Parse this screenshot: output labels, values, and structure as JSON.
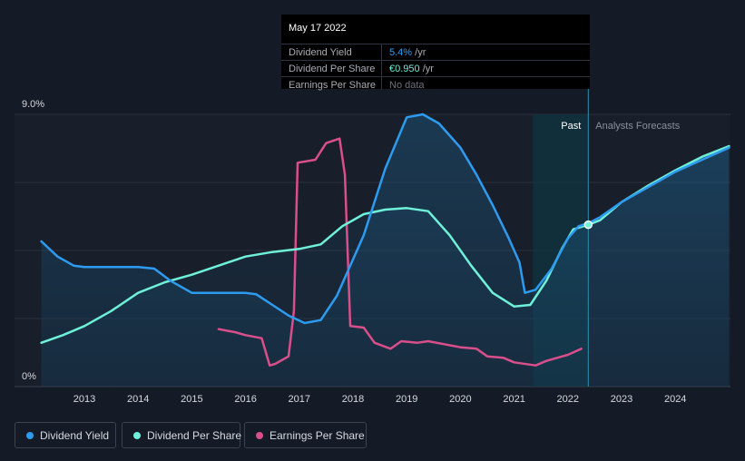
{
  "tooltip": {
    "date": "May 17 2022",
    "rows": [
      {
        "label": "Dividend Yield",
        "value": "5.4%",
        "unit": " /yr",
        "color": "#2d9cf0"
      },
      {
        "label": "Dividend Per Share",
        "value": "€0.950",
        "unit": " /yr",
        "color": "#6ff0d8"
      },
      {
        "label": "Earnings Per Share",
        "value": "No data",
        "unit": "",
        "color": "#6b7280"
      }
    ]
  },
  "chart_data": {
    "type": "line",
    "y_axis_labels": [
      "9.0%",
      "0%"
    ],
    "ylim": [
      0,
      9.0
    ],
    "x_tick_labels": [
      "2013",
      "2014",
      "2015",
      "2016",
      "2017",
      "2018",
      "2019",
      "2020",
      "2021",
      "2022",
      "2023",
      "2024"
    ],
    "xlim": [
      2012.2,
      2025.0
    ],
    "past_label": "Past",
    "forecast_label": "Analysts Forecasts",
    "forecast_start": 2022.38,
    "legend_position": "bottom-left",
    "series": [
      {
        "name": "Dividend Yield",
        "color": "#2d9cf0",
        "x": [
          2012.2,
          2012.5,
          2012.8,
          2013.0,
          2013.5,
          2014.0,
          2014.3,
          2014.6,
          2015.0,
          2015.5,
          2016.0,
          2016.2,
          2016.5,
          2016.8,
          2017.1,
          2017.4,
          2017.7,
          2018.2,
          2018.6,
          2019.0,
          2019.3,
          2019.6,
          2020.0,
          2020.3,
          2020.6,
          2020.9,
          2021.1,
          2021.2,
          2021.4,
          2021.7,
          2022.0,
          2022.2,
          2022.38,
          2022.6,
          2023.0,
          2023.5,
          2024.0,
          2024.5,
          2025.0
        ],
        "y": [
          4.8,
          4.3,
          4.0,
          3.95,
          3.95,
          3.95,
          3.9,
          3.5,
          3.1,
          3.1,
          3.1,
          3.05,
          2.7,
          2.35,
          2.1,
          2.2,
          3.0,
          5.0,
          7.2,
          8.9,
          9.0,
          8.7,
          7.9,
          7.0,
          6.0,
          4.9,
          4.1,
          3.1,
          3.2,
          3.9,
          4.9,
          5.3,
          5.4,
          5.6,
          6.1,
          6.6,
          7.1,
          7.5,
          7.9
        ]
      },
      {
        "name": "Dividend Per Share",
        "color": "#6ff0d8",
        "x": [
          2012.2,
          2012.6,
          2013.0,
          2013.5,
          2014.0,
          2014.5,
          2015.0,
          2015.5,
          2016.0,
          2016.5,
          2017.0,
          2017.4,
          2017.8,
          2018.2,
          2018.6,
          2019.0,
          2019.4,
          2019.8,
          2020.2,
          2020.6,
          2021.0,
          2021.3,
          2021.6,
          2021.9,
          2022.1,
          2022.38,
          2022.6,
          2023.0,
          2023.5,
          2024.0,
          2024.5,
          2025.0
        ],
        "y": [
          1.45,
          1.7,
          2.0,
          2.5,
          3.1,
          3.45,
          3.7,
          4.0,
          4.3,
          4.45,
          4.55,
          4.7,
          5.3,
          5.7,
          5.85,
          5.9,
          5.8,
          5.0,
          4.0,
          3.1,
          2.65,
          2.7,
          3.5,
          4.6,
          5.2,
          5.35,
          5.5,
          6.1,
          6.65,
          7.15,
          7.6,
          7.95
        ]
      },
      {
        "name": "Earnings Per Share",
        "color": "#d94f8c",
        "x": [
          2015.5,
          2015.8,
          2016.0,
          2016.3,
          2016.45,
          2016.55,
          2016.8,
          2016.9,
          2016.97,
          2017.3,
          2017.5,
          2017.75,
          2017.85,
          2017.95,
          2018.2,
          2018.4,
          2018.7,
          2018.9,
          2019.2,
          2019.4,
          2019.7,
          2020.0,
          2020.3,
          2020.5,
          2020.8,
          2021.0,
          2021.4,
          2021.6,
          2021.8,
          2022.0,
          2022.25
        ],
        "y": [
          1.9,
          1.8,
          1.7,
          1.6,
          0.7,
          0.75,
          1.0,
          2.5,
          7.4,
          7.5,
          8.05,
          8.2,
          7.0,
          2.0,
          1.95,
          1.45,
          1.25,
          1.5,
          1.45,
          1.5,
          1.4,
          1.3,
          1.25,
          1.0,
          0.95,
          0.8,
          0.7,
          0.85,
          0.95,
          1.05,
          1.25
        ]
      }
    ]
  }
}
